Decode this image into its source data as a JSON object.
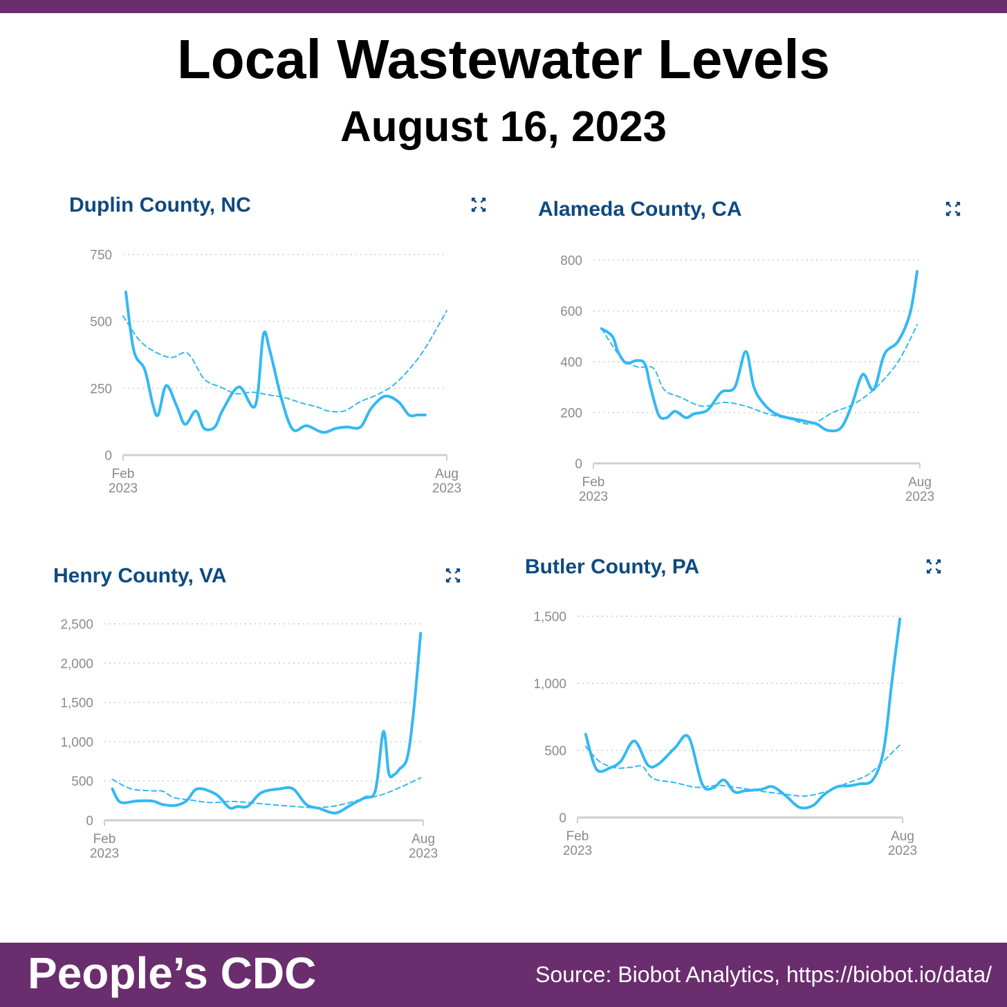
{
  "header": {
    "title": "Local Wastewater Levels",
    "subtitle": "August 16, 2023"
  },
  "footer": {
    "brand": "People’s CDC",
    "source": "Source: Biobot Analytics, https://biobot.io/data/"
  },
  "colors": {
    "brand_purple": "#6a2d6e",
    "panel_title": "#0d4a80",
    "series_line": "#33b8f3",
    "axis_text": "#8a8a8a",
    "grid": "#d6d6d6"
  },
  "icons": {
    "expand": "expand-arrows-icon"
  },
  "chart_data": [
    {
      "type": "line",
      "title": "Duplin County, NC",
      "ylim": [
        0,
        750
      ],
      "yticks": [
        0,
        250,
        500,
        750
      ],
      "ytick_labels": [
        "0",
        "250",
        "500",
        "750"
      ],
      "x_range": [
        0,
        6
      ],
      "x_tick_labels": [
        [
          "Feb",
          "2023"
        ],
        [
          "Aug",
          "2023"
        ]
      ],
      "grid": true,
      "series": [
        {
          "style": "solid",
          "x": [
            0.05,
            0.2,
            0.4,
            0.55,
            0.65,
            0.8,
            1.0,
            1.15,
            1.35,
            1.5,
            1.7,
            1.85,
            2.15,
            2.45,
            2.6,
            2.72,
            2.95,
            3.15,
            3.4,
            3.7,
            3.95,
            4.15,
            4.4,
            4.6,
            4.85,
            5.1,
            5.3,
            5.45,
            5.6
          ],
          "y": [
            610,
            390,
            320,
            190,
            150,
            260,
            180,
            115,
            165,
            100,
            105,
            170,
            255,
            185,
            450,
            390,
            200,
            95,
            110,
            85,
            100,
            105,
            105,
            175,
            220,
            200,
            150,
            150,
            150
          ]
        },
        {
          "style": "dashed",
          "x": [
            0.0,
            0.3,
            0.6,
            0.9,
            1.2,
            1.5,
            1.8,
            2.1,
            2.4,
            2.7,
            3.0,
            3.3,
            3.6,
            3.8,
            4.1,
            4.4,
            4.7,
            5.0,
            5.3,
            5.6,
            6.0
          ],
          "y": [
            520,
            430,
            385,
            365,
            380,
            285,
            255,
            230,
            235,
            225,
            215,
            195,
            180,
            165,
            165,
            200,
            225,
            260,
            320,
            400,
            540
          ]
        }
      ]
    },
    {
      "type": "line",
      "title": "Alameda County, CA",
      "ylim": [
        0,
        800
      ],
      "yticks": [
        0,
        200,
        400,
        600,
        800
      ],
      "ytick_labels": [
        "0",
        "200",
        "400",
        "600",
        "800"
      ],
      "x_range": [
        0,
        6
      ],
      "x_tick_labels": [
        [
          "Feb",
          "2023"
        ],
        [
          "Aug",
          "2023"
        ]
      ],
      "grid": true,
      "series": [
        {
          "style": "solid",
          "x": [
            0.15,
            0.35,
            0.45,
            0.6,
            0.8,
            0.95,
            1.05,
            1.2,
            1.35,
            1.5,
            1.7,
            1.85,
            2.1,
            2.35,
            2.6,
            2.8,
            2.95,
            3.15,
            3.4,
            3.8,
            4.1,
            4.3,
            4.55,
            4.75,
            4.95,
            5.15,
            5.35,
            5.6,
            5.82,
            5.95
          ],
          "y": [
            530,
            500,
            440,
            395,
            405,
            390,
            300,
            190,
            180,
            205,
            180,
            195,
            210,
            280,
            300,
            440,
            300,
            230,
            190,
            170,
            155,
            130,
            140,
            230,
            350,
            290,
            430,
            480,
            590,
            755
          ]
        },
        {
          "style": "dashed",
          "x": [
            0.15,
            0.5,
            0.8,
            1.1,
            1.3,
            1.6,
            2.0,
            2.4,
            2.8,
            3.2,
            3.6,
            4.0,
            4.4,
            4.8,
            5.2,
            5.6,
            5.95
          ],
          "y": [
            530,
            420,
            380,
            375,
            290,
            260,
            225,
            240,
            225,
            195,
            175,
            155,
            200,
            235,
            300,
            400,
            545
          ]
        }
      ]
    },
    {
      "type": "line",
      "title": "Henry County, VA",
      "ylim": [
        0,
        2500
      ],
      "yticks": [
        0,
        500,
        1000,
        1500,
        2000,
        2500
      ],
      "ytick_labels": [
        "0",
        "500",
        "1,000",
        "1,500",
        "2,000",
        "2,500"
      ],
      "x_range": [
        0,
        6
      ],
      "x_tick_labels": [
        [
          "Feb",
          "2023"
        ],
        [
          "Aug",
          "2023"
        ]
      ],
      "grid": true,
      "series": [
        {
          "style": "solid",
          "x": [
            0.15,
            0.3,
            0.6,
            0.9,
            1.1,
            1.35,
            1.55,
            1.75,
            2.1,
            2.35,
            2.5,
            2.7,
            2.95,
            3.3,
            3.55,
            3.8,
            4.05,
            4.25,
            4.4,
            4.65,
            4.9,
            5.1,
            5.25,
            5.35,
            5.45,
            5.55,
            5.7,
            5.82,
            5.95
          ],
          "y": [
            400,
            230,
            245,
            245,
            200,
            190,
            250,
            400,
            330,
            160,
            175,
            180,
            350,
            400,
            400,
            200,
            150,
            100,
            100,
            200,
            290,
            380,
            1130,
            600,
            580,
            650,
            800,
            1400,
            2380
          ]
        },
        {
          "style": "dashed",
          "x": [
            0.15,
            0.5,
            0.9,
            1.1,
            1.3,
            1.6,
            2.0,
            2.4,
            2.8,
            3.2,
            3.6,
            4.0,
            4.4,
            4.8,
            5.2,
            5.6,
            5.95
          ],
          "y": [
            520,
            400,
            375,
            370,
            290,
            260,
            225,
            240,
            220,
            195,
            175,
            160,
            190,
            260,
            320,
            430,
            540
          ]
        }
      ]
    },
    {
      "type": "line",
      "title": "Butler County, PA",
      "ylim": [
        0,
        1500
      ],
      "yticks": [
        0,
        500,
        1000,
        1500
      ],
      "ytick_labels": [
        "0",
        "500",
        "1,000",
        "1,500"
      ],
      "x_range": [
        0,
        6
      ],
      "x_tick_labels": [
        [
          "Feb",
          "2023"
        ],
        [
          "Aug",
          "2023"
        ]
      ],
      "grid": true,
      "series": [
        {
          "style": "solid",
          "x": [
            0.15,
            0.35,
            0.6,
            0.8,
            1.05,
            1.3,
            1.5,
            1.8,
            2.05,
            2.3,
            2.5,
            2.7,
            2.9,
            3.1,
            3.4,
            3.6,
            3.85,
            4.1,
            4.35,
            4.55,
            4.8,
            5.0,
            5.2,
            5.45,
            5.65,
            5.8,
            5.95
          ],
          "y": [
            620,
            360,
            370,
            420,
            570,
            390,
            400,
            520,
            600,
            250,
            220,
            280,
            190,
            200,
            210,
            230,
            160,
            75,
            90,
            170,
            230,
            235,
            250,
            280,
            500,
            1000,
            1480
          ]
        },
        {
          "style": "dashed",
          "x": [
            0.15,
            0.4,
            0.7,
            1.0,
            1.2,
            1.4,
            1.8,
            2.2,
            2.6,
            3.0,
            3.4,
            3.8,
            4.2,
            4.6,
            5.0,
            5.4,
            5.95
          ],
          "y": [
            530,
            420,
            370,
            375,
            380,
            290,
            260,
            225,
            240,
            220,
            195,
            175,
            160,
            195,
            260,
            330,
            540
          ]
        }
      ]
    }
  ]
}
